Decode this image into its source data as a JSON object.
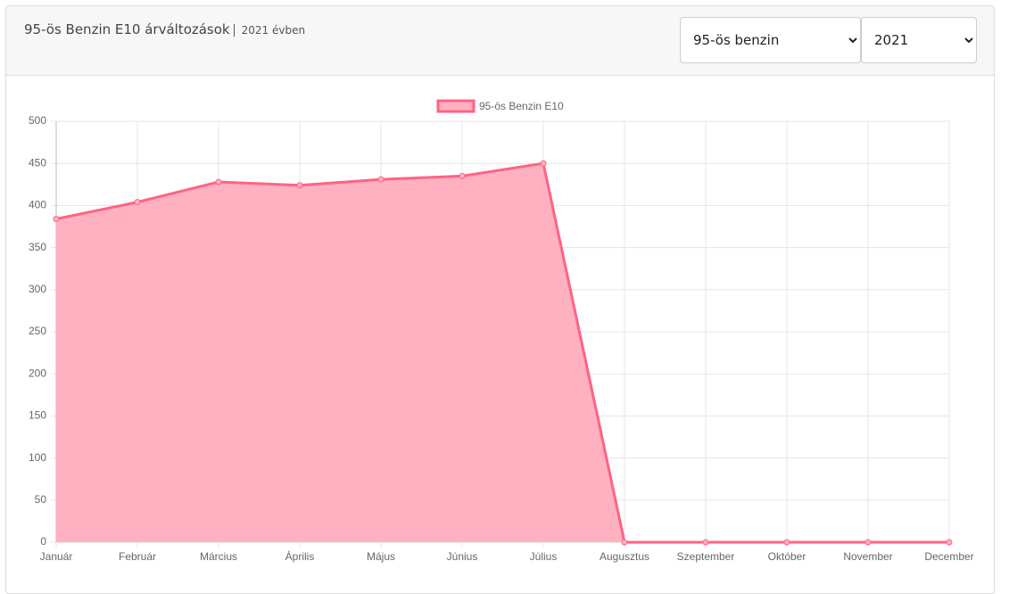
{
  "header": {
    "title": "95-ös Benzin E10 árváltozások",
    "subtitle": "2021 évben",
    "fuel_select": "95-ös benzin",
    "year_select": "2021"
  },
  "chart_data": {
    "type": "area",
    "categories": [
      "Január",
      "Február",
      "Március",
      "Április",
      "Május",
      "Június",
      "Július",
      "Augusztus",
      "Szeptember",
      "Október",
      "November",
      "December"
    ],
    "series": [
      {
        "name": "95-ös Benzin E10",
        "color": "#ff6384",
        "fill": "#ffb1c1",
        "values": [
          384,
          404,
          428,
          424,
          431,
          435,
          450,
          0,
          0,
          0,
          0,
          0
        ]
      }
    ],
    "ylim": [
      0,
      500
    ],
    "yticks": [
      0,
      50,
      100,
      150,
      200,
      250,
      300,
      350,
      400,
      450,
      500
    ],
    "grid": true,
    "legend": "top"
  }
}
